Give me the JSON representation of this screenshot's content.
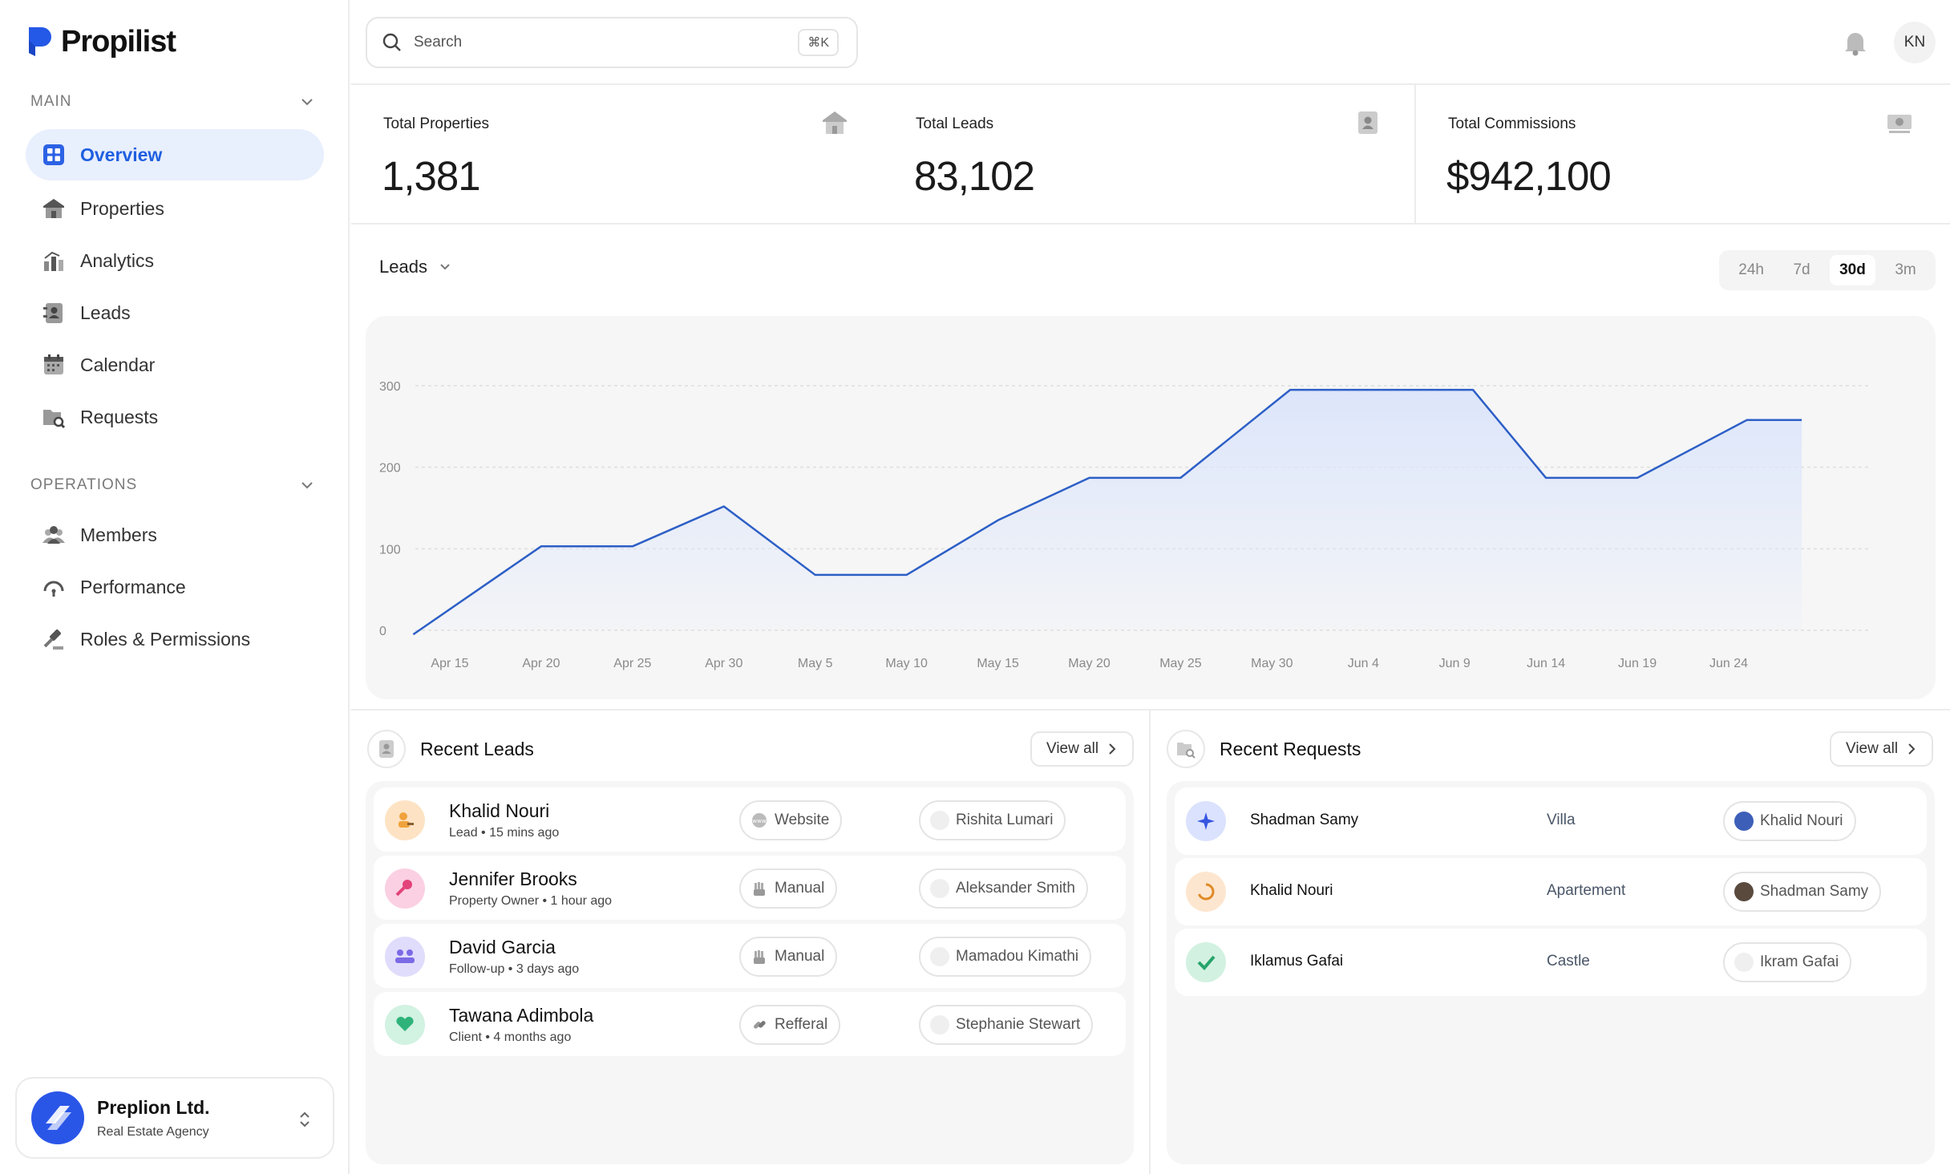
{
  "brand": {
    "name": "Propilist"
  },
  "sidebar": {
    "main_label": "MAIN",
    "operations_label": "OPERATIONS",
    "items": [
      {
        "label": "Overview",
        "icon": "grid-icon",
        "active": true
      },
      {
        "label": "Properties",
        "icon": "house-icon"
      },
      {
        "label": "Analytics",
        "icon": "bar-chart-icon"
      },
      {
        "label": "Leads",
        "icon": "contact-card-icon"
      },
      {
        "label": "Calendar",
        "icon": "calendar-icon"
      },
      {
        "label": "Requests",
        "icon": "folder-search-icon"
      }
    ],
    "ops_items": [
      {
        "label": "Members",
        "icon": "people-icon"
      },
      {
        "label": "Performance",
        "icon": "gauge-icon"
      },
      {
        "label": "Roles & Permissions",
        "icon": "gavel-icon"
      }
    ],
    "org": {
      "name": "Preplion Ltd.",
      "subtitle": "Real Estate Agency"
    }
  },
  "topbar": {
    "search_placeholder": "Search",
    "shortcut": "⌘K",
    "user_initials": "KN"
  },
  "stats": [
    {
      "label": "Total Properties",
      "value": "1,381",
      "icon": "house-icon"
    },
    {
      "label": "Total Leads",
      "value": "83,102",
      "icon": "contact-card-icon"
    },
    {
      "label": "Total Commissions",
      "value": "$942,100",
      "icon": "money-icon"
    }
  ],
  "chart_section": {
    "selector_label": "Leads",
    "ranges": [
      "24h",
      "7d",
      "30d",
      "3m"
    ],
    "selected_range": "30d"
  },
  "chart_data": {
    "type": "area",
    "y_ticks": [
      "0",
      "100",
      "200",
      "300"
    ],
    "x_labels": [
      "Apr 15",
      "Apr 20",
      "Apr 25",
      "Apr 30",
      "May 5",
      "May 10",
      "May 15",
      "May 20",
      "May 25",
      "May 30",
      "Jun 4",
      "Jun 9",
      "Jun 14",
      "Jun 19",
      "Jun 24"
    ],
    "ylim": [
      0,
      300
    ],
    "points": [
      {
        "x": "Apr 13",
        "y": -5
      },
      {
        "x": "Apr 20",
        "y": 103
      },
      {
        "x": "Apr 25",
        "y": 103
      },
      {
        "x": "Apr 30",
        "y": 152
      },
      {
        "x": "May 5",
        "y": 68
      },
      {
        "x": "May 10",
        "y": 68
      },
      {
        "x": "May 15",
        "y": 135
      },
      {
        "x": "May 20",
        "y": 187
      },
      {
        "x": "May 25",
        "y": 187
      },
      {
        "x": "May 31",
        "y": 295
      },
      {
        "x": "Jun 10",
        "y": 295
      },
      {
        "x": "Jun 14",
        "y": 187
      },
      {
        "x": "Jun 19",
        "y": 187
      },
      {
        "x": "Jun 25",
        "y": 258
      },
      {
        "x": "Jun 28",
        "y": 258
      }
    ],
    "line_color": "#2d5fc6",
    "fill_color": "#dbe5fb",
    "grid": true
  },
  "recent_leads": {
    "title": "Recent Leads",
    "view_all": "View all",
    "rows": [
      {
        "name": "Khalid Nouri",
        "sub": "Lead • 15 mins ago",
        "source": "Website",
        "agent": "Rishita Lumari",
        "color": "#fde3c4"
      },
      {
        "name": "Jennifer Brooks",
        "sub": "Property Owner • 1 hour ago",
        "source": "Manual",
        "agent": "Aleksander Smith",
        "color": "#fbd0e2"
      },
      {
        "name": "David Garcia",
        "sub": "Follow-up • 3 days ago",
        "source": "Manual",
        "agent": "Mamadou Kimathi",
        "color": "#e0dcfb"
      },
      {
        "name": "Tawana Adimbola",
        "sub": "Client • 4 months ago",
        "source": "Refferal",
        "agent": "Stephanie Stewart",
        "color": "#d2f2e2"
      }
    ]
  },
  "recent_requests": {
    "title": "Recent Requests",
    "view_all": "View all",
    "rows": [
      {
        "name": "Shadman Samy",
        "type": "Villa",
        "agent": "Khalid Nouri",
        "color": "#dbe2fd"
      },
      {
        "name": "Khalid Nouri",
        "type": "Apartement",
        "agent": "Shadman Samy",
        "color": "#fde6cf"
      },
      {
        "name": "Iklamus Gafai",
        "type": "Castle",
        "agent": "Ikram Gafai",
        "color": "#d3f1e1"
      }
    ]
  }
}
